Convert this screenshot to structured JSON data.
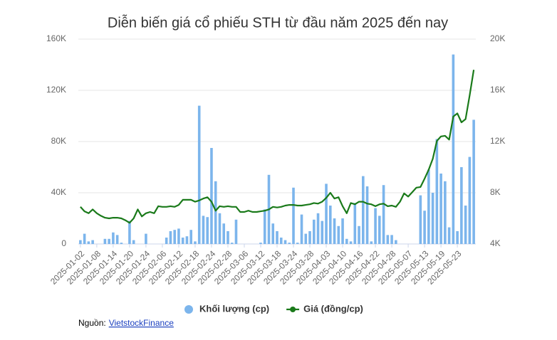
{
  "chart_data": {
    "type": "bar-line",
    "title": "Diễn biến giá cổ phiếu STH từ đầu năm 2025 đến nay",
    "categories": [
      "2025-01-02",
      null,
      null,
      null,
      "2025-01-08",
      null,
      null,
      null,
      "2025-01-14",
      null,
      null,
      null,
      "2025-01-20",
      null,
      null,
      null,
      "2025-01-24",
      null,
      null,
      null,
      "2025-02-06",
      null,
      null,
      null,
      "2025-02-12",
      null,
      null,
      null,
      "2025-02-18",
      null,
      null,
      null,
      "2025-02-24",
      null,
      null,
      null,
      "2025-02-28",
      null,
      null,
      null,
      "2025-03-06",
      null,
      null,
      null,
      "2025-03-12",
      null,
      null,
      null,
      "2025-03-18",
      null,
      null,
      null,
      "2025-03-24",
      null,
      null,
      null,
      "2025-03-28",
      null,
      null,
      null,
      "2025-04-03",
      null,
      null,
      null,
      "2025-04-10",
      null,
      null,
      null,
      "2025-04-16",
      null,
      null,
      null,
      "2025-04-22",
      null,
      null,
      null,
      "2025-04-28",
      null,
      null,
      null,
      "2025-05-07",
      null,
      null,
      null,
      "2025-05-13",
      null,
      null,
      null,
      "2025-05-19",
      null,
      null,
      null,
      "2025-05-23",
      null,
      null,
      null,
      null
    ],
    "series": [
      {
        "name": "Khối lượng (cp)",
        "type": "bar",
        "color": "#7cb5ec",
        "axis": "y",
        "values": [
          3000,
          8000,
          2000,
          3000,
          0,
          0,
          4000,
          4000,
          9000,
          7000,
          1000,
          0,
          18000,
          3000,
          0,
          0,
          8000,
          0,
          0,
          0,
          0,
          5000,
          10000,
          11000,
          12000,
          5000,
          6000,
          11000,
          2000,
          108000,
          22000,
          21000,
          75000,
          49000,
          24000,
          16000,
          10000,
          1000,
          19000,
          0,
          0,
          0,
          0,
          0,
          1000,
          27000,
          54000,
          16000,
          10000,
          5000,
          3000,
          1000,
          44000,
          1000,
          23000,
          8000,
          10000,
          19000,
          24000,
          18000,
          47000,
          30000,
          20000,
          14000,
          20000,
          4000,
          2000,
          32000,
          14000,
          53000,
          45000,
          2000,
          28000,
          22000,
          46000,
          7000,
          7000,
          3000,
          0,
          0,
          0,
          0,
          0,
          38000,
          26000,
          58000,
          40000,
          82000,
          55000,
          49000,
          13000,
          148000,
          10000,
          60000,
          30000,
          68000,
          97000
        ]
      },
      {
        "name": "Giá (đồng/cp)",
        "type": "line",
        "color": "#1a7a1a",
        "axis": "y2",
        "values": [
          6900,
          6550,
          6400,
          6700,
          6400,
          6200,
          6050,
          6000,
          6050,
          6050,
          6000,
          5850,
          5650,
          6000,
          6700,
          6150,
          6400,
          6500,
          6400,
          6950,
          6900,
          6900,
          6950,
          6900,
          7050,
          7450,
          7450,
          7450,
          7300,
          7400,
          7550,
          7650,
          7300,
          6600,
          6950,
          6900,
          6950,
          6900,
          6900,
          6500,
          6500,
          6600,
          6500,
          6500,
          6550,
          6600,
          6700,
          6900,
          6850,
          6900,
          7000,
          7050,
          7050,
          7000,
          7000,
          7050,
          7100,
          7200,
          7150,
          7300,
          7600,
          8000,
          7550,
          7650,
          6950,
          6400,
          7200,
          7100,
          7300,
          7300,
          7150,
          7100,
          6950,
          7100,
          7150,
          6950,
          7000,
          6900,
          7300,
          7950,
          7700,
          8050,
          8400,
          8450,
          9100,
          9800,
          10650,
          12050,
          12400,
          12450,
          12150,
          13950,
          14200,
          13500,
          13750,
          15600,
          17600
        ]
      }
    ],
    "ylim": [
      0,
      160000
    ],
    "yticks": [
      0,
      {
        "value": 40000,
        "label": "40K"
      },
      {
        "value": 80000,
        "label": "80K"
      },
      {
        "value": 120000,
        "label": "120K"
      },
      {
        "value": 160000,
        "label": "160K"
      }
    ],
    "y2lim": [
      4000,
      20000
    ],
    "y2ticks": [
      {
        "value": 4000,
        "label": "4K"
      },
      {
        "value": 8000,
        "label": "8K"
      },
      {
        "value": 12000,
        "label": "12K"
      },
      {
        "value": 16000,
        "label": "16K"
      },
      {
        "value": 20000,
        "label": "20K"
      }
    ],
    "grid": true,
    "legend": "bottom",
    "source": {
      "label": "Nguồn:",
      "link": "VietstockFinance"
    }
  }
}
